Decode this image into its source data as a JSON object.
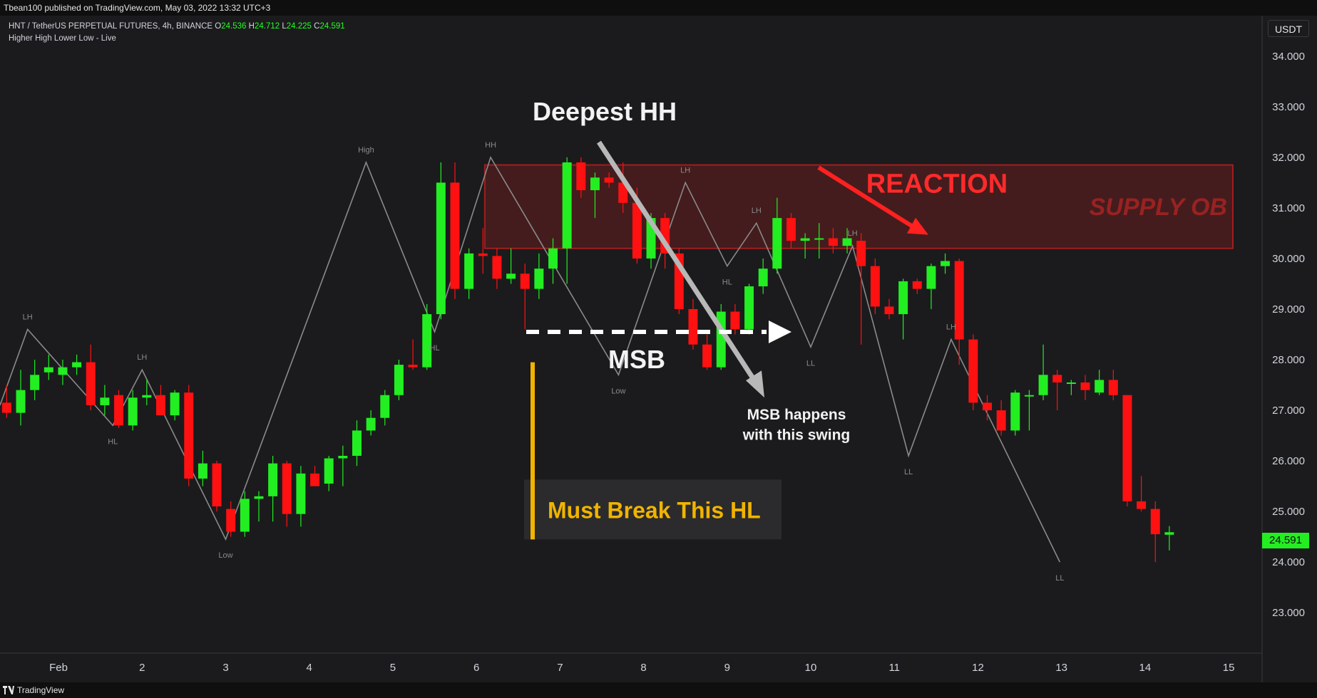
{
  "header": {
    "published_text": "Tbean100 published on TradingView.com, May 03, 2022 13:32 UTC+3",
    "symbol_text": "HNT / TetherUS PERPETUAL FUTURES, 4h, BINANCE",
    "open_label": "O",
    "open_value": "24.536",
    "high_label": "H",
    "high_value": "24.712",
    "low_label": "L",
    "low_value": "24.225",
    "close_label": "C",
    "close_value": "24.591",
    "indicator_text": "Higher High Lower Low - Live"
  },
  "footer": {
    "brand_text": "TradingView"
  },
  "currency_label": "USDT",
  "last_price_label": "24.591",
  "colors": {
    "up": "#22ee22",
    "down": "#ff1111",
    "background": "#1b1b1d",
    "zigzag": "#8a8a8a",
    "accent": "#f0b400"
  },
  "chart_data": {
    "type": "candlestick",
    "y_axis_ticks": [
      "23.000",
      "24.000",
      "25.000",
      "26.000",
      "27.000",
      "28.000",
      "29.000",
      "30.000",
      "31.000",
      "32.000",
      "33.000",
      "34.000"
    ],
    "ylim": [
      22.2,
      34.8
    ],
    "x_axis_ticks": [
      {
        "label": "Feb",
        "x": 1
      },
      {
        "label": "2",
        "x": 2
      },
      {
        "label": "3",
        "x": 3
      },
      {
        "label": "4",
        "x": 4
      },
      {
        "label": "5",
        "x": 5
      },
      {
        "label": "6",
        "x": 6
      },
      {
        "label": "7",
        "x": 7
      },
      {
        "label": "8",
        "x": 8
      },
      {
        "label": "9",
        "x": 9
      },
      {
        "label": "10",
        "x": 10
      },
      {
        "label": "11",
        "x": 11
      },
      {
        "label": "12",
        "x": 12
      },
      {
        "label": "13",
        "x": 13
      },
      {
        "label": "14",
        "x": 14
      },
      {
        "label": "15",
        "x": 15
      }
    ],
    "xlim": [
      0.3,
      15.4
    ],
    "candles": [
      {
        "o": 27.15,
        "h": 27.5,
        "l": 26.85,
        "c": 26.95
      },
      {
        "o": 26.95,
        "h": 27.8,
        "l": 26.7,
        "c": 27.4
      },
      {
        "o": 27.4,
        "h": 28.0,
        "l": 27.2,
        "c": 27.7
      },
      {
        "o": 27.75,
        "h": 28.1,
        "l": 27.6,
        "c": 27.85
      },
      {
        "o": 27.7,
        "h": 28.0,
        "l": 27.5,
        "c": 27.85
      },
      {
        "o": 27.85,
        "h": 28.1,
        "l": 27.7,
        "c": 27.95
      },
      {
        "o": 27.95,
        "h": 28.3,
        "l": 27.0,
        "c": 27.1
      },
      {
        "o": 27.1,
        "h": 27.5,
        "l": 26.9,
        "c": 27.25
      },
      {
        "o": 27.3,
        "h": 27.4,
        "l": 26.65,
        "c": 26.7
      },
      {
        "o": 26.7,
        "h": 27.4,
        "l": 26.6,
        "c": 27.25
      },
      {
        "o": 27.25,
        "h": 27.6,
        "l": 27.1,
        "c": 27.3
      },
      {
        "o": 27.3,
        "h": 27.5,
        "l": 26.9,
        "c": 26.9
      },
      {
        "o": 26.9,
        "h": 27.4,
        "l": 26.8,
        "c": 27.35
      },
      {
        "o": 27.35,
        "h": 27.5,
        "l": 25.5,
        "c": 25.65
      },
      {
        "o": 25.65,
        "h": 26.2,
        "l": 25.5,
        "c": 25.95
      },
      {
        "o": 25.95,
        "h": 26.0,
        "l": 25.0,
        "c": 25.1
      },
      {
        "o": 25.05,
        "h": 25.2,
        "l": 24.5,
        "c": 24.6
      },
      {
        "o": 24.6,
        "h": 25.4,
        "l": 24.5,
        "c": 25.25
      },
      {
        "o": 25.25,
        "h": 25.4,
        "l": 24.8,
        "c": 25.3
      },
      {
        "o": 25.3,
        "h": 26.1,
        "l": 24.8,
        "c": 25.95
      },
      {
        "o": 25.95,
        "h": 26.0,
        "l": 24.7,
        "c": 24.95
      },
      {
        "o": 24.95,
        "h": 25.9,
        "l": 24.7,
        "c": 25.75
      },
      {
        "o": 25.75,
        "h": 25.9,
        "l": 25.5,
        "c": 25.5
      },
      {
        "o": 25.55,
        "h": 26.1,
        "l": 25.4,
        "c": 26.05
      },
      {
        "o": 26.05,
        "h": 26.3,
        "l": 25.5,
        "c": 26.1
      },
      {
        "o": 26.1,
        "h": 26.8,
        "l": 25.9,
        "c": 26.6
      },
      {
        "o": 26.6,
        "h": 27.0,
        "l": 26.5,
        "c": 26.85
      },
      {
        "o": 26.85,
        "h": 27.4,
        "l": 26.7,
        "c": 27.3
      },
      {
        "o": 27.3,
        "h": 28.0,
        "l": 27.2,
        "c": 27.9
      },
      {
        "o": 27.9,
        "h": 28.4,
        "l": 27.8,
        "c": 27.85
      },
      {
        "o": 27.85,
        "h": 29.1,
        "l": 27.8,
        "c": 28.9
      },
      {
        "o": 28.9,
        "h": 31.9,
        "l": 28.8,
        "c": 31.5
      },
      {
        "o": 31.5,
        "h": 31.9,
        "l": 29.2,
        "c": 29.4
      },
      {
        "o": 29.4,
        "h": 30.2,
        "l": 29.2,
        "c": 30.1
      },
      {
        "o": 30.1,
        "h": 30.6,
        "l": 29.7,
        "c": 30.05
      },
      {
        "o": 30.05,
        "h": 30.2,
        "l": 29.4,
        "c": 29.6
      },
      {
        "o": 29.6,
        "h": 30.2,
        "l": 29.5,
        "c": 29.7
      },
      {
        "o": 29.7,
        "h": 29.9,
        "l": 28.6,
        "c": 29.4
      },
      {
        "o": 29.4,
        "h": 30.1,
        "l": 29.2,
        "c": 29.8
      },
      {
        "o": 29.8,
        "h": 30.4,
        "l": 29.5,
        "c": 30.2
      },
      {
        "o": 30.2,
        "h": 32.0,
        "l": 29.5,
        "c": 31.9
      },
      {
        "o": 31.9,
        "h": 32.0,
        "l": 31.2,
        "c": 31.35
      },
      {
        "o": 31.35,
        "h": 31.7,
        "l": 30.8,
        "c": 31.6
      },
      {
        "o": 31.6,
        "h": 31.7,
        "l": 31.4,
        "c": 31.5
      },
      {
        "o": 31.5,
        "h": 31.9,
        "l": 30.9,
        "c": 31.1
      },
      {
        "o": 31.1,
        "h": 31.4,
        "l": 29.9,
        "c": 30.0
      },
      {
        "o": 30.0,
        "h": 30.9,
        "l": 29.8,
        "c": 30.8
      },
      {
        "o": 30.8,
        "h": 30.9,
        "l": 29.8,
        "c": 30.1
      },
      {
        "o": 30.1,
        "h": 30.2,
        "l": 28.9,
        "c": 29.0
      },
      {
        "o": 29.0,
        "h": 29.2,
        "l": 28.2,
        "c": 28.3
      },
      {
        "o": 28.3,
        "h": 28.5,
        "l": 27.8,
        "c": 27.85
      },
      {
        "o": 27.85,
        "h": 29.1,
        "l": 27.8,
        "c": 28.95
      },
      {
        "o": 28.95,
        "h": 29.1,
        "l": 28.5,
        "c": 28.6
      },
      {
        "o": 28.6,
        "h": 29.5,
        "l": 28.5,
        "c": 29.45
      },
      {
        "o": 29.45,
        "h": 30.0,
        "l": 29.3,
        "c": 29.8
      },
      {
        "o": 29.8,
        "h": 31.2,
        "l": 29.7,
        "c": 30.8
      },
      {
        "o": 30.8,
        "h": 30.9,
        "l": 30.2,
        "c": 30.35
      },
      {
        "o": 30.35,
        "h": 30.5,
        "l": 30.0,
        "c": 30.4
      },
      {
        "o": 30.4,
        "h": 30.7,
        "l": 30.0,
        "c": 30.4
      },
      {
        "o": 30.4,
        "h": 30.6,
        "l": 30.1,
        "c": 30.25
      },
      {
        "o": 30.25,
        "h": 30.6,
        "l": 30.1,
        "c": 30.4
      },
      {
        "o": 30.35,
        "h": 30.5,
        "l": 28.3,
        "c": 29.85
      },
      {
        "o": 29.85,
        "h": 30.0,
        "l": 28.9,
        "c": 29.05
      },
      {
        "o": 29.05,
        "h": 29.2,
        "l": 28.8,
        "c": 28.9
      },
      {
        "o": 28.9,
        "h": 29.6,
        "l": 28.4,
        "c": 29.55
      },
      {
        "o": 29.55,
        "h": 29.6,
        "l": 29.3,
        "c": 29.4
      },
      {
        "o": 29.4,
        "h": 29.9,
        "l": 29.0,
        "c": 29.85
      },
      {
        "o": 29.85,
        "h": 30.1,
        "l": 29.7,
        "c": 29.95
      },
      {
        "o": 29.95,
        "h": 30.0,
        "l": 27.9,
        "c": 28.4
      },
      {
        "o": 28.4,
        "h": 28.5,
        "l": 27.0,
        "c": 27.15
      },
      {
        "o": 27.15,
        "h": 27.3,
        "l": 26.8,
        "c": 27.0
      },
      {
        "o": 27.0,
        "h": 27.2,
        "l": 26.5,
        "c": 26.6
      },
      {
        "o": 26.6,
        "h": 27.4,
        "l": 26.5,
        "c": 27.35
      },
      {
        "o": 27.3,
        "h": 27.4,
        "l": 26.6,
        "c": 27.3
      },
      {
        "o": 27.3,
        "h": 28.3,
        "l": 27.2,
        "c": 27.7
      },
      {
        "o": 27.7,
        "h": 27.8,
        "l": 27.0,
        "c": 27.55
      },
      {
        "o": 27.55,
        "h": 27.6,
        "l": 27.3,
        "c": 27.55
      },
      {
        "o": 27.55,
        "h": 27.7,
        "l": 27.2,
        "c": 27.4
      },
      {
        "o": 27.35,
        "h": 27.8,
        "l": 27.3,
        "c": 27.6
      },
      {
        "o": 27.6,
        "h": 27.8,
        "l": 27.2,
        "c": 27.3
      },
      {
        "o": 27.3,
        "h": 27.3,
        "l": 25.1,
        "c": 25.2
      },
      {
        "o": 25.2,
        "h": 25.7,
        "l": 25.0,
        "c": 25.05
      },
      {
        "o": 25.05,
        "h": 25.2,
        "l": 24.0,
        "c": 24.55
      },
      {
        "o": 24.54,
        "h": 24.71,
        "l": 24.23,
        "c": 24.59
      }
    ],
    "zigzag": [
      {
        "x": 0.3,
        "y": 27.1
      },
      {
        "x": 0.63,
        "y": 28.6
      },
      {
        "x": 1.65,
        "y": 26.7
      },
      {
        "x": 2.0,
        "y": 27.8
      },
      {
        "x": 3.0,
        "y": 24.45
      },
      {
        "x": 4.68,
        "y": 31.9
      },
      {
        "x": 5.5,
        "y": 28.55
      },
      {
        "x": 6.17,
        "y": 32.0
      },
      {
        "x": 7.7,
        "y": 27.7
      },
      {
        "x": 8.5,
        "y": 31.5
      },
      {
        "x": 9.0,
        "y": 29.85
      },
      {
        "x": 9.35,
        "y": 30.7
      },
      {
        "x": 10.0,
        "y": 28.25
      },
      {
        "x": 10.5,
        "y": 30.25
      },
      {
        "x": 11.17,
        "y": 26.1
      },
      {
        "x": 11.68,
        "y": 28.4
      },
      {
        "x": 12.98,
        "y": 24.0
      }
    ],
    "pivot_labels": [
      {
        "text": "LH",
        "x": 0.63,
        "y": 28.6,
        "pos": "above"
      },
      {
        "text": "HL",
        "x": 1.65,
        "y": 26.7,
        "pos": "below"
      },
      {
        "text": "LH",
        "x": 2.0,
        "y": 27.8,
        "pos": "above"
      },
      {
        "text": "Low",
        "x": 3.0,
        "y": 24.45,
        "pos": "below"
      },
      {
        "text": "High",
        "x": 4.68,
        "y": 31.9,
        "pos": "above"
      },
      {
        "text": "HL",
        "x": 5.5,
        "y": 28.55,
        "pos": "below"
      },
      {
        "text": "HH",
        "x": 6.17,
        "y": 32.0,
        "pos": "above"
      },
      {
        "text": "Low",
        "x": 7.7,
        "y": 27.7,
        "pos": "below"
      },
      {
        "text": "LH",
        "x": 8.5,
        "y": 31.5,
        "pos": "above"
      },
      {
        "text": "HL",
        "x": 9.0,
        "y": 29.85,
        "pos": "below"
      },
      {
        "text": "LH",
        "x": 9.35,
        "y": 30.7,
        "pos": "above"
      },
      {
        "text": "LL",
        "x": 10.0,
        "y": 28.25,
        "pos": "below"
      },
      {
        "text": "LH",
        "x": 10.5,
        "y": 30.25,
        "pos": "above"
      },
      {
        "text": "LL",
        "x": 11.17,
        "y": 26.1,
        "pos": "below"
      },
      {
        "text": "LH",
        "x": 11.68,
        "y": 28.4,
        "pos": "above"
      },
      {
        "text": "LL",
        "x": 12.98,
        "y": 24.0,
        "pos": "below"
      }
    ],
    "supply_zone": {
      "label": "SUPPLY  OB",
      "x_from": 6.1,
      "x_to": 15.05,
      "y_from": 30.2,
      "y_to": 31.85,
      "color": "#ff2020"
    },
    "annotations": {
      "deepest_hh": "Deepest HH",
      "reaction": "REACTION",
      "msb": "MSB",
      "msb_swing_line1": "MSB happens",
      "msb_swing_line2": "with this swing",
      "must_break": "Must Break This HL"
    }
  }
}
